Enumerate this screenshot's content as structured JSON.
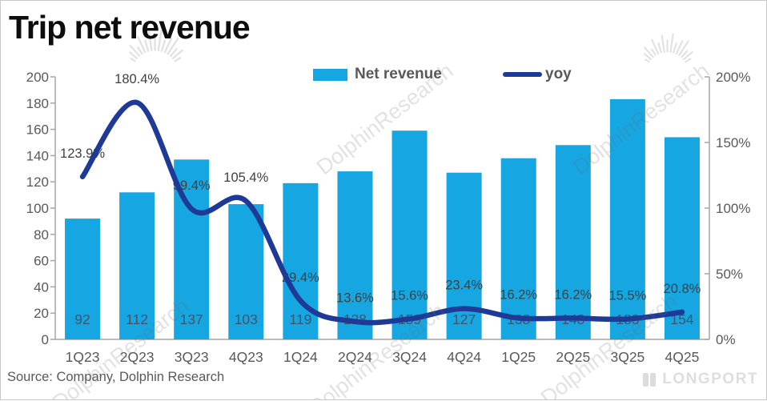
{
  "page": {
    "title": "Trip net revenue",
    "source": "Source: Company, Dolphin Research",
    "watermark_text": "DolphinResearch",
    "brand_watermark": "LONGPORT"
  },
  "colors": {
    "bar": "#16A6E2",
    "line": "#1E3A96",
    "axis": "#a6a6a6",
    "bar_label": "#44546A",
    "yoy_label": "#404040",
    "tick_label": "#595959"
  },
  "chart_data": {
    "type": "combo-bar-line",
    "title": "Trip net revenue",
    "categories": [
      "1Q23",
      "2Q23",
      "3Q23",
      "4Q23",
      "1Q24",
      "2Q24",
      "3Q24",
      "4Q24",
      "1Q25",
      "2Q25",
      "3Q25",
      "4Q25"
    ],
    "series": [
      {
        "name": "Net revenue",
        "type": "bar",
        "axis": "left",
        "color": "#16A6E2",
        "values": [
          92,
          112,
          137,
          103,
          119,
          128,
          159,
          127,
          138,
          148,
          183,
          154
        ],
        "data_labels": [
          "92",
          "112",
          "137",
          "103",
          "119",
          "128",
          "159",
          "127",
          "138",
          "148",
          "183",
          "154"
        ]
      },
      {
        "name": "yoy",
        "type": "line",
        "axis": "right",
        "color": "#1E3A96",
        "values": [
          123.9,
          180.4,
          99.4,
          105.4,
          29.4,
          13.6,
          15.6,
          23.4,
          16.2,
          16.2,
          15.5,
          20.8
        ],
        "data_labels": [
          "123.9%",
          "180.4%",
          "99.4%",
          "105.4%",
          "29.4%",
          "13.6%",
          "15.6%",
          "23.4%",
          "16.2%",
          "16.2%",
          "15.5%",
          "20.8%"
        ]
      }
    ],
    "left_axis": {
      "min": 0,
      "max": 200,
      "tick_labels": [
        "0",
        "20",
        "40",
        "60",
        "80",
        "100",
        "120",
        "140",
        "160",
        "180",
        "200"
      ]
    },
    "right_axis": {
      "min": 0,
      "max": 200,
      "tick_labels": [
        "0%",
        "50%",
        "100%",
        "150%",
        "200%"
      ]
    },
    "grid": false,
    "legend_position": "top"
  }
}
